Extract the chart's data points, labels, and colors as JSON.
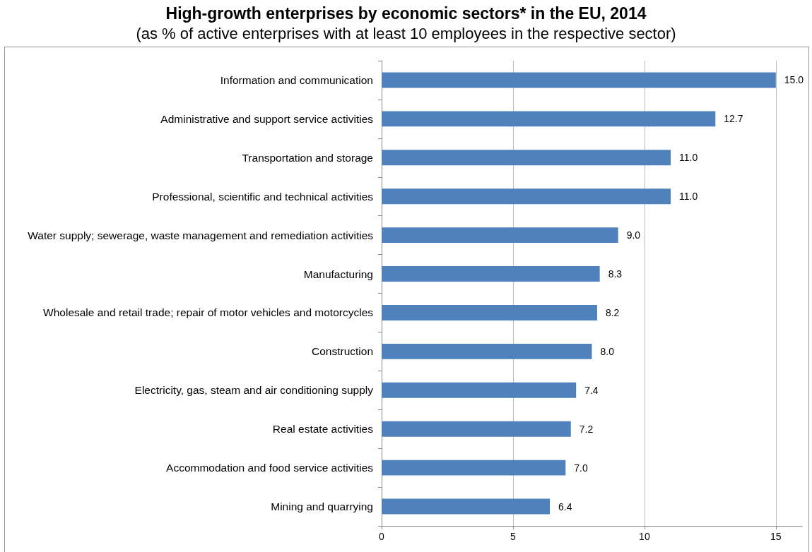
{
  "chart_data": {
    "type": "bar",
    "orientation": "horizontal",
    "title": "High-growth enterprises by economic sectors* in the EU, 2014",
    "subtitle": "(as % of active enterprises with at least 10 employees in the respective sector)",
    "categories": [
      "Information and communication",
      "Administrative and support service activities",
      "Transportation and storage",
      "Professional, scientific and technical activities",
      "Water supply; sewerage, waste management and remediation activities",
      "Manufacturing",
      "Wholesale and retail trade; repair of motor vehicles and motorcycles",
      "Construction",
      "Electricity, gas, steam and air conditioning supply",
      "Real estate activities",
      "Accommodation and food service activities",
      "Mining and quarrying"
    ],
    "values": [
      15.0,
      12.7,
      11.0,
      11.0,
      9.0,
      8.3,
      8.2,
      8.0,
      7.4,
      7.2,
      7.0,
      6.4
    ],
    "value_labels": [
      "15.0",
      "12.7",
      "11.0",
      "11.0",
      "9.0",
      "8.3",
      "8.2",
      "8.0",
      "7.4",
      "7.2",
      "7.0",
      "6.4"
    ],
    "color": "#4f81bd",
    "xlim": [
      0,
      16
    ],
    "xticks": [
      0,
      5,
      10,
      15
    ],
    "grid": "x"
  }
}
